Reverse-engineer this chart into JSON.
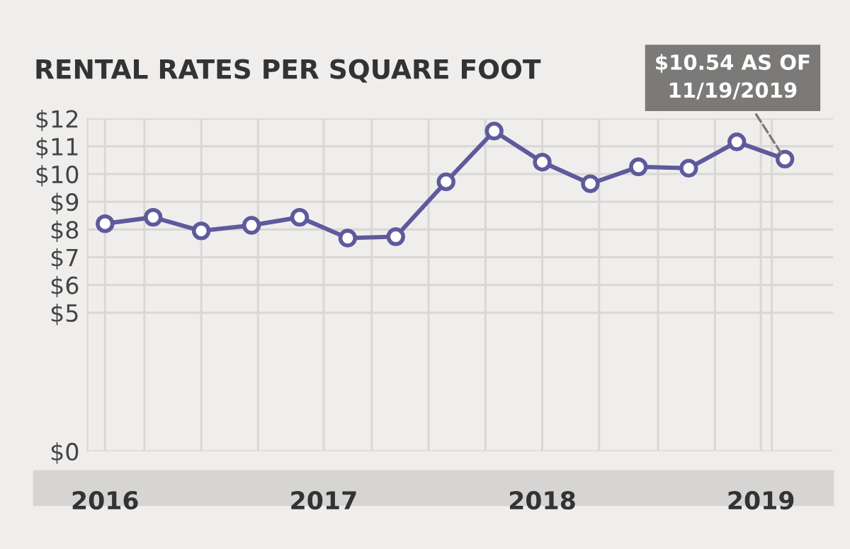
{
  "chart_data": {
    "type": "line",
    "title": "RENTAL RATES PER SQUARE FOOT",
    "x": [
      2016,
      2016.22,
      2016.44,
      2016.67,
      2016.89,
      2017.11,
      2017.33,
      2017.56,
      2017.78,
      2018.0,
      2018.22,
      2018.44,
      2018.67,
      2018.89,
      2019.11
    ],
    "series": [
      {
        "color": "#5e5a9c",
        "values": [
          8.21,
          8.44,
          7.95,
          8.15,
          8.44,
          7.69,
          7.74,
          9.72,
          11.55,
          10.43,
          9.65,
          10.26,
          10.21,
          11.16,
          10.54
        ]
      }
    ],
    "xlim": [
      2015.92,
      2019.33
    ],
    "xticks": [
      {
        "value": 2016,
        "label": "2016"
      },
      {
        "value": 2017,
        "label": "2017"
      },
      {
        "value": 2018,
        "label": "2018"
      },
      {
        "value": 2019,
        "label": "2019"
      },
      {
        "value": 2016.18,
        "label": null
      },
      {
        "value": 2016.44,
        "label": null
      },
      {
        "value": 2016.7,
        "label": null
      },
      {
        "value": 2017.22,
        "label": null
      },
      {
        "value": 2017.48,
        "label": null
      },
      {
        "value": 2017.74,
        "label": null
      },
      {
        "value": 2018.26,
        "label": null
      },
      {
        "value": 2018.53,
        "label": null
      },
      {
        "value": 2018.79,
        "label": null
      },
      {
        "value": 2019.05,
        "label": null
      }
    ],
    "ylim": [
      0,
      12
    ],
    "yticks": [
      {
        "value": 0,
        "label": "$0"
      },
      {
        "value": 5,
        "label": "$5"
      },
      {
        "value": 6,
        "label": "$6"
      },
      {
        "value": 7,
        "label": "$7"
      },
      {
        "value": 8,
        "label": "$8"
      },
      {
        "value": 9,
        "label": "$9"
      },
      {
        "value": 10,
        "label": "$10"
      },
      {
        "value": 11,
        "label": "$11"
      },
      {
        "value": 12,
        "label": "$12"
      }
    ],
    "grid": true,
    "marker": "circle",
    "line_style": "solid",
    "annotations": [
      {
        "text": "$10.54 AS OF\n11/19/2019",
        "x": 2019.11,
        "y": 10.54
      }
    ]
  }
}
